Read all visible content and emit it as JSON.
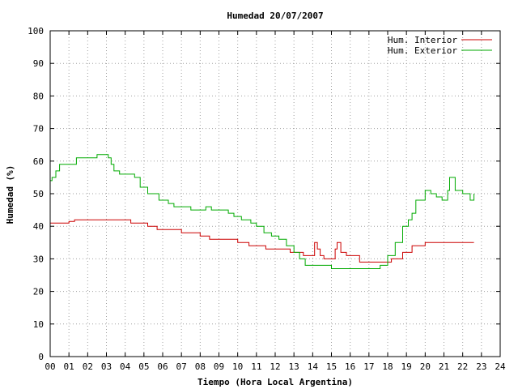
{
  "chart_data": {
    "type": "line",
    "title": "Humedad 20/07/2007",
    "xlabel": "Tiempo (Hora Local Argentina)",
    "ylabel": "Humedad (%)",
    "xlim": [
      0,
      24
    ],
    "ylim": [
      0,
      100
    ],
    "x_ticks": [
      "00",
      "01",
      "02",
      "03",
      "04",
      "05",
      "06",
      "07",
      "08",
      "09",
      "10",
      "11",
      "12",
      "13",
      "14",
      "15",
      "16",
      "17",
      "18",
      "19",
      "20",
      "21",
      "22",
      "23",
      "24"
    ],
    "y_ticks": [
      "0",
      "10",
      "20",
      "30",
      "40",
      "50",
      "60",
      "70",
      "80",
      "90",
      "100"
    ],
    "grid": true,
    "legend_position": "top-right",
    "series": [
      {
        "name": "Hum. Interior",
        "color": "#cc0000",
        "x": [
          0,
          0.5,
          1,
          1.3,
          2,
          3,
          3.6,
          4.3,
          5.2,
          5.7,
          6.5,
          7.0,
          7.3,
          8.0,
          8.5,
          9.2,
          10.0,
          10.6,
          11.5,
          12.2,
          12.8,
          13.5,
          14.0,
          14.1,
          14.25,
          14.4,
          14.6,
          15.0,
          15.2,
          15.3,
          15.5,
          15.8,
          16.5,
          17.5,
          18.2,
          18.8,
          19.3,
          20.0,
          21.0,
          22.0,
          22.6
        ],
        "y": [
          41,
          41,
          41.5,
          42,
          42,
          42,
          42,
          41,
          40,
          39,
          39,
          38,
          38,
          37,
          36,
          36,
          35,
          34,
          33,
          33,
          32,
          31,
          31,
          35,
          33,
          31,
          30,
          30,
          33,
          35,
          32,
          31,
          29,
          29,
          30,
          32,
          34,
          35,
          35,
          35,
          35
        ]
      },
      {
        "name": "Hum. Exterior",
        "color": "#00aa00",
        "x": [
          0,
          0.1,
          0.3,
          0.5,
          1.0,
          1.4,
          2.0,
          2.5,
          3.0,
          3.1,
          3.25,
          3.4,
          3.7,
          4.1,
          4.3,
          4.5,
          4.8,
          5.2,
          5.8,
          6.3,
          6.6,
          7.0,
          7.5,
          8.0,
          8.3,
          8.6,
          9.0,
          9.5,
          9.8,
          10.2,
          10.7,
          11.0,
          11.4,
          11.8,
          12.2,
          12.6,
          13.0,
          13.3,
          13.6,
          14.0,
          14.4,
          15.0,
          15.5,
          16.0,
          16.5,
          17.0,
          17.3,
          17.6,
          18.0,
          18.4,
          18.8,
          19.1,
          19.3,
          19.5,
          20.0,
          20.3,
          20.6,
          20.9,
          21.2,
          21.3,
          21.6,
          22.0,
          22.2,
          22.4,
          22.6
        ],
        "y": [
          54,
          55,
          57,
          59,
          59,
          61,
          61,
          62,
          62,
          61,
          59,
          57,
          56,
          56,
          56,
          55,
          52,
          50,
          48,
          47,
          46,
          46,
          45,
          45,
          46,
          45,
          45,
          44,
          43,
          42,
          41,
          40,
          38,
          37,
          36,
          34,
          32,
          30,
          28,
          28,
          28,
          27,
          27,
          27,
          27,
          27,
          27,
          28,
          31,
          35,
          40,
          42,
          44,
          48,
          51,
          50,
          49,
          48,
          51,
          55,
          51,
          50,
          50,
          48,
          50
        ]
      }
    ]
  }
}
